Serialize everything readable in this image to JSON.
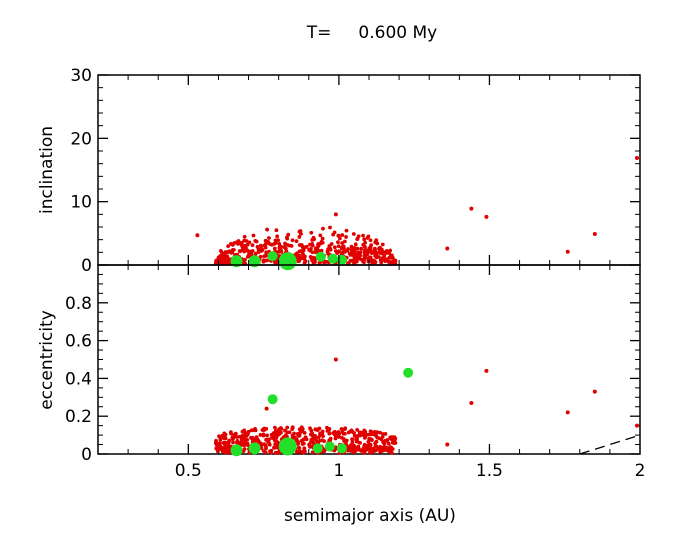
{
  "title": "T=     0.600 My",
  "chart_data": [
    {
      "type": "scatter",
      "panel": "top",
      "ylabel": "inclination",
      "xlim": [
        0.2,
        2.0
      ],
      "ylim": [
        0,
        30
      ],
      "yticks": [
        "0",
        "10",
        "20",
        "30"
      ],
      "colors": {
        "planetesimals": "#e00000",
        "embryos": "#22e02a"
      },
      "embryos": [
        {
          "x": 0.66,
          "y": 0.6,
          "size": 6
        },
        {
          "x": 0.72,
          "y": 0.6,
          "size": 6
        },
        {
          "x": 0.78,
          "y": 1.4,
          "size": 5
        },
        {
          "x": 0.83,
          "y": 0.6,
          "size": 9
        },
        {
          "x": 0.94,
          "y": 1.3,
          "size": 5
        },
        {
          "x": 0.98,
          "y": 1.0,
          "size": 5
        },
        {
          "x": 1.01,
          "y": 0.8,
          "size": 5
        }
      ],
      "outliers": [
        {
          "x": 0.53,
          "y": 4.7
        },
        {
          "x": 0.99,
          "y": 8.0
        },
        {
          "x": 1.36,
          "y": 2.6
        },
        {
          "x": 1.44,
          "y": 8.9
        },
        {
          "x": 1.49,
          "y": 7.6
        },
        {
          "x": 1.76,
          "y": 2.1
        },
        {
          "x": 1.85,
          "y": 4.9
        },
        {
          "x": 1.99,
          "y": 16.9
        }
      ]
    },
    {
      "type": "scatter",
      "panel": "bottom",
      "xlabel": "semimajor axis (AU)",
      "ylabel": "eccentricity",
      "xlim": [
        0.2,
        2.0
      ],
      "ylim": [
        0,
        1
      ],
      "yticks": [
        "0",
        "0.2",
        "0.4",
        "0.6",
        "0.8"
      ],
      "xticks": [
        "0.5",
        "1",
        "1.5",
        "2"
      ],
      "embryos": [
        {
          "x": 0.66,
          "y": 0.02,
          "size": 6
        },
        {
          "x": 0.72,
          "y": 0.03,
          "size": 6
        },
        {
          "x": 0.78,
          "y": 0.29,
          "size": 5
        },
        {
          "x": 0.83,
          "y": 0.04,
          "size": 9
        },
        {
          "x": 0.93,
          "y": 0.03,
          "size": 5
        },
        {
          "x": 0.97,
          "y": 0.04,
          "size": 5
        },
        {
          "x": 1.01,
          "y": 0.03,
          "size": 5
        },
        {
          "x": 1.23,
          "y": 0.43,
          "size": 5
        }
      ],
      "outliers": [
        {
          "x": 0.76,
          "y": 0.24
        },
        {
          "x": 0.99,
          "y": 0.5
        },
        {
          "x": 1.36,
          "y": 0.05
        },
        {
          "x": 1.44,
          "y": 0.27
        },
        {
          "x": 1.49,
          "y": 0.44
        },
        {
          "x": 1.76,
          "y": 0.22
        },
        {
          "x": 1.85,
          "y": 0.33
        },
        {
          "x": 1.99,
          "y": 0.15
        }
      ],
      "boundary_line": {
        "style": "dashed",
        "from": [
          1.8,
          0.0
        ],
        "to": [
          2.0,
          0.1
        ]
      }
    }
  ]
}
